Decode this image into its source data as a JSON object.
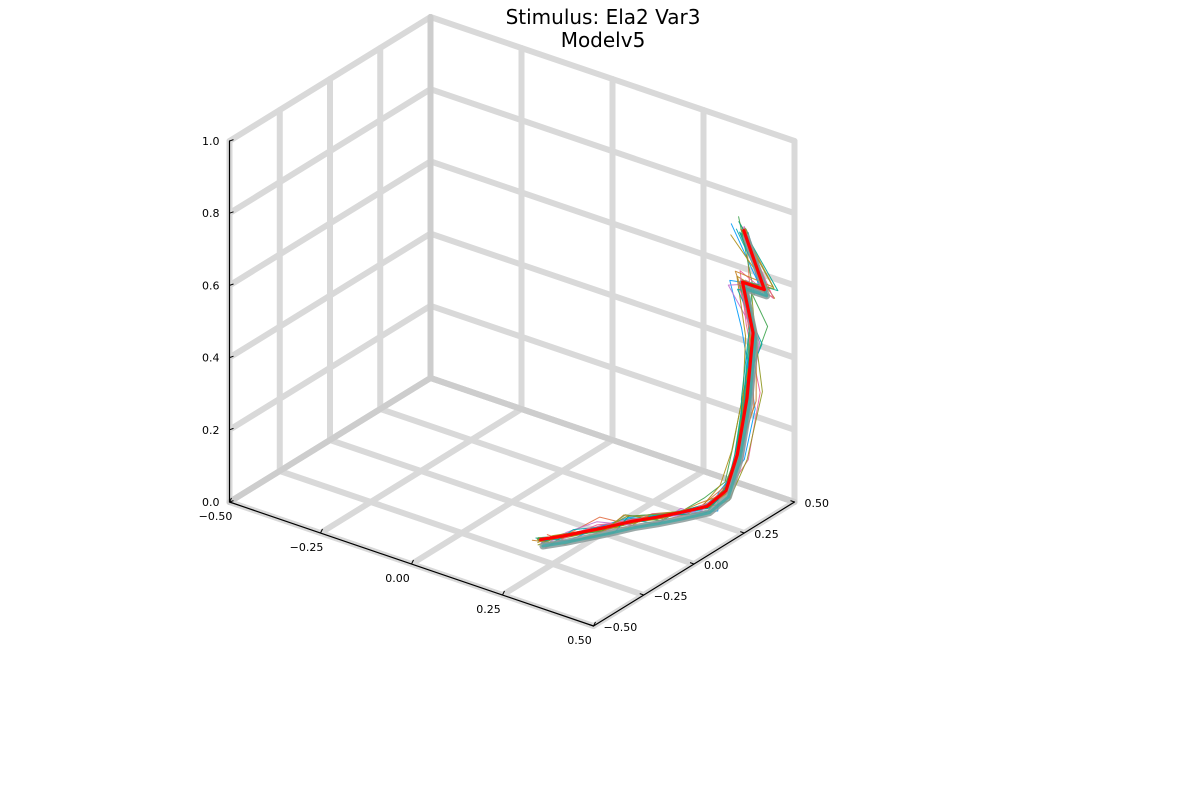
{
  "title": {
    "line1": "Stimulus: Ela2 Var3",
    "line2": "Modelv5"
  },
  "chart_data": {
    "type": "line3d",
    "grid": true,
    "axes": {
      "x": {
        "range": [
          -0.5,
          0.5
        ],
        "ticks": [
          -0.5,
          -0.25,
          0.0,
          0.25,
          0.5
        ],
        "tick_labels": [
          "−0.50",
          "−0.25",
          "0.00",
          "0.25",
          "0.50"
        ]
      },
      "y": {
        "range": [
          -0.5,
          0.5
        ],
        "ticks": [
          -0.5,
          -0.25,
          0.0,
          0.25,
          0.5
        ],
        "tick_labels": [
          "−0.50",
          "−0.25",
          "0.00",
          "0.25",
          "0.50"
        ]
      },
      "z": {
        "range": [
          0.0,
          1.0
        ],
        "ticks": [
          0.0,
          0.2,
          0.4,
          0.6,
          0.8,
          1.0
        ],
        "tick_labels": [
          "0.0",
          "0.2",
          "0.4",
          "0.6",
          "0.8",
          "1.0"
        ]
      }
    },
    "target_trajectory": {
      "color": "#ff0000",
      "points": [
        [
          0.2,
          -0.22,
          0.04
        ],
        [
          0.24,
          -0.18,
          0.05
        ],
        [
          0.3,
          -0.08,
          0.06
        ],
        [
          0.33,
          0.0,
          0.06
        ],
        [
          0.35,
          0.08,
          0.05
        ],
        [
          0.38,
          0.15,
          0.05
        ],
        [
          0.42,
          0.21,
          0.06
        ],
        [
          0.45,
          0.25,
          0.1
        ],
        [
          0.47,
          0.27,
          0.2
        ],
        [
          0.48,
          0.3,
          0.35
        ],
        [
          0.48,
          0.33,
          0.52
        ],
        [
          0.44,
          0.35,
          0.64
        ],
        [
          0.5,
          0.35,
          0.64
        ],
        [
          0.46,
          0.32,
          0.8
        ]
      ]
    },
    "model_trajectories": {
      "colors": [
        "#009af9",
        "#e26f46",
        "#3da44d",
        "#c271d2",
        "#ac8e18",
        "#00a9ad",
        "#ed5e93",
        "#c68225",
        "#00a98d",
        "#8e971e"
      ],
      "mean_path": [
        [
          0.2,
          -0.22,
          0.04
        ],
        [
          0.24,
          -0.18,
          0.05
        ],
        [
          0.3,
          -0.08,
          0.06
        ],
        [
          0.33,
          0.0,
          0.06
        ],
        [
          0.35,
          0.08,
          0.05
        ],
        [
          0.38,
          0.15,
          0.05
        ],
        [
          0.42,
          0.21,
          0.06
        ],
        [
          0.45,
          0.25,
          0.1
        ],
        [
          0.47,
          0.27,
          0.2
        ],
        [
          0.48,
          0.3,
          0.35
        ],
        [
          0.48,
          0.33,
          0.52
        ],
        [
          0.44,
          0.35,
          0.64
        ],
        [
          0.5,
          0.35,
          0.64
        ],
        [
          0.46,
          0.32,
          0.8
        ]
      ]
    }
  }
}
